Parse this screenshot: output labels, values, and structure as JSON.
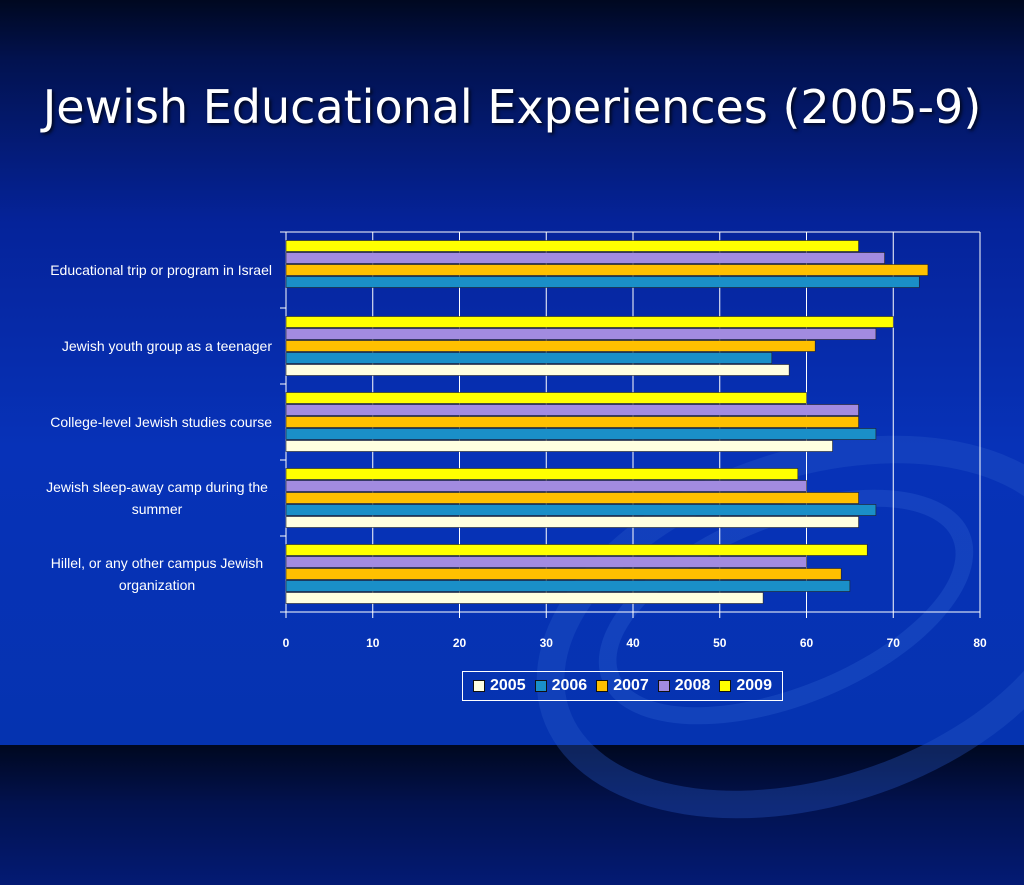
{
  "slide": {
    "title": "Jewish Educational Experiences (2005-9)"
  },
  "chart_data": {
    "type": "bar",
    "orientation": "horizontal",
    "categories": [
      "Educational trip or program in Israel",
      "Jewish youth group as a teenager",
      "College-level Jewish studies course",
      "Jewish sleep-away camp during the summer",
      "Hillel, or any other campus Jewish organization"
    ],
    "category_lines": [
      [
        "Educational trip or program in Israel"
      ],
      [
        "Jewish youth group as a teenager"
      ],
      [
        "College-level Jewish studies course"
      ],
      [
        "Jewish sleep-away camp during the",
        "summer"
      ],
      [
        "Hillel, or any other campus Jewish",
        "organization"
      ]
    ],
    "series": [
      {
        "name": "2005",
        "color": "#ffffe0",
        "values": [
          null,
          58,
          63,
          66,
          55
        ]
      },
      {
        "name": "2006",
        "color": "#1a8fc8",
        "values": [
          73,
          56,
          68,
          68,
          65
        ]
      },
      {
        "name": "2007",
        "color": "#ffc000",
        "values": [
          74,
          61,
          66,
          66,
          64
        ]
      },
      {
        "name": "2008",
        "color": "#a28be0",
        "values": [
          69,
          68,
          66,
          60,
          60
        ]
      },
      {
        "name": "2009",
        "color": "#ffff00",
        "values": [
          66,
          70,
          60,
          59,
          67
        ]
      }
    ],
    "xlim": [
      0,
      80
    ],
    "xticks": [
      "0",
      "10",
      "20",
      "30",
      "40",
      "50",
      "60",
      "70",
      "80"
    ],
    "grid": true,
    "legend_position": "bottom"
  }
}
